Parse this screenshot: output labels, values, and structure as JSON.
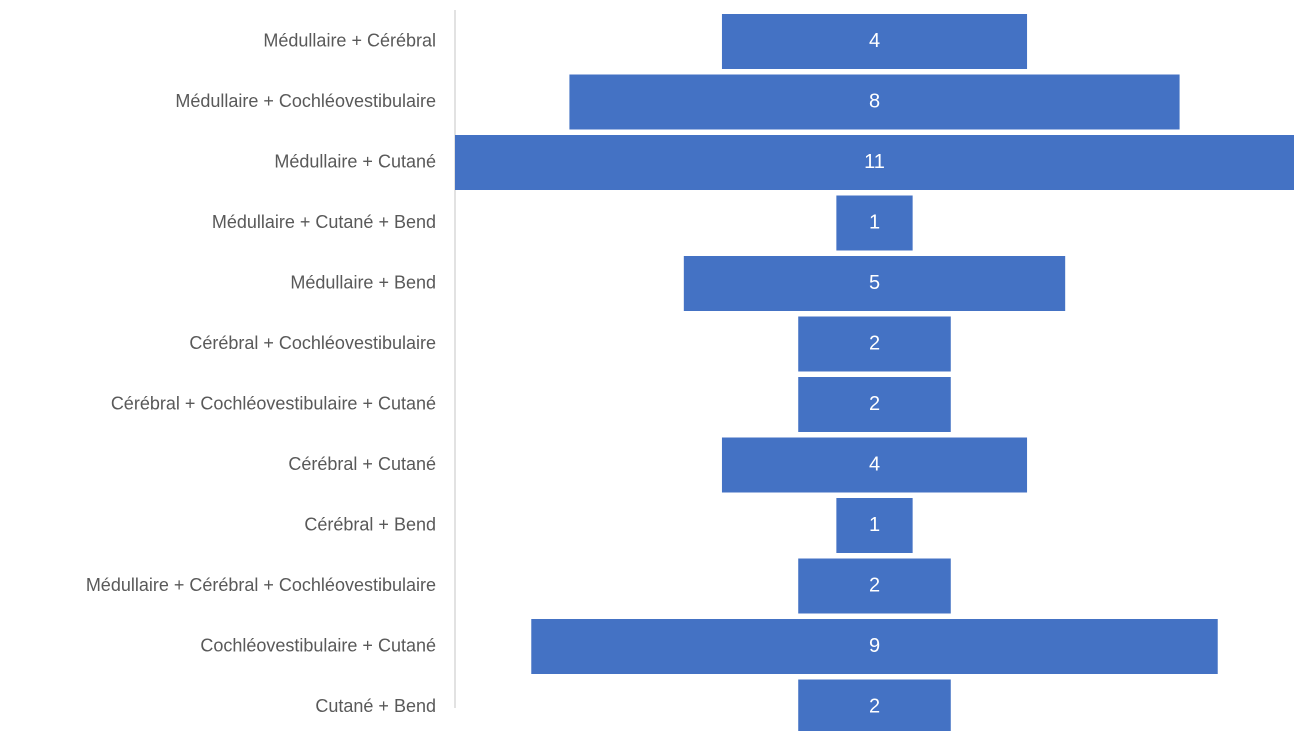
{
  "chart_data": {
    "type": "bar",
    "orientation": "horizontal",
    "style": "funnel-centered",
    "categories": [
      "Médullaire + Cérébral",
      "Médullaire + Cochléovestibulaire",
      "Médullaire + Cutané",
      "Médullaire + Cutané + Bend",
      "Médullaire + Bend",
      "Cérébral + Cochléovestibulaire",
      "Cérébral + Cochléovestibulaire + Cutané",
      "Cérébral + Cutané",
      "Cérébral + Bend",
      "Médullaire + Cérébral + Cochléovestibulaire",
      "Cochléovestibulaire + Cutané",
      "Cutané + Bend"
    ],
    "values": [
      4,
      8,
      11,
      1,
      5,
      2,
      2,
      4,
      1,
      2,
      9,
      2
    ],
    "title": "",
    "xlabel": "",
    "ylabel": "",
    "xlim": [
      0,
      11
    ],
    "grid": false,
    "legend": "none",
    "data_labels": true,
    "colors": {
      "bar": "#4472c4",
      "bar_label": "#ffffff",
      "category_label": "#595959",
      "axis": "#d9d9d9"
    }
  }
}
